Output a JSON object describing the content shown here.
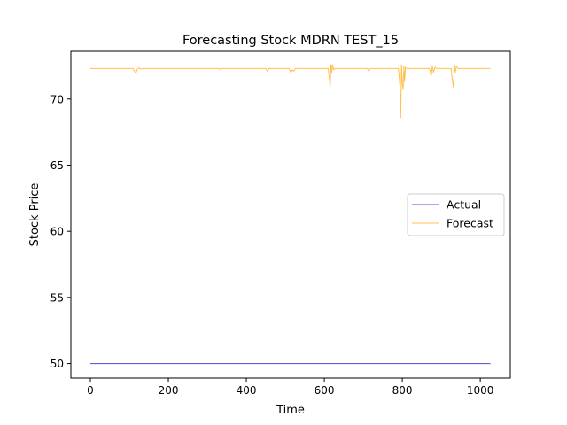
{
  "chart_data": {
    "type": "line",
    "title": "Forecasting Stock MDRN TEST_15",
    "xlabel": "Time",
    "ylabel": "Stock Price",
    "xlim": [
      -50,
      1077
    ],
    "ylim": [
      48.9,
      73.6
    ],
    "xticks": [
      0,
      200,
      400,
      600,
      800,
      1000
    ],
    "yticks": [
      50,
      55,
      60,
      65,
      70
    ],
    "legend_position": "center-right",
    "grid": false,
    "series": [
      {
        "name": "Actual",
        "color": "#0000cc",
        "points": [
          [
            0,
            50.0
          ],
          [
            1026,
            50.0
          ]
        ]
      },
      {
        "name": "Forecast",
        "color": "#ffa500",
        "points": [
          [
            0,
            72.3
          ],
          [
            110,
            72.3
          ],
          [
            113,
            72.1
          ],
          [
            117,
            71.95
          ],
          [
            121,
            72.3
          ],
          [
            125,
            72.35
          ],
          [
            130,
            72.25
          ],
          [
            135,
            72.3
          ],
          [
            330,
            72.3
          ],
          [
            334,
            72.2
          ],
          [
            338,
            72.3
          ],
          [
            450,
            72.3
          ],
          [
            454,
            72.1
          ],
          [
            458,
            72.3
          ],
          [
            510,
            72.3
          ],
          [
            514,
            72.0
          ],
          [
            518,
            72.2
          ],
          [
            522,
            72.1
          ],
          [
            526,
            72.3
          ],
          [
            610,
            72.3
          ],
          [
            613,
            71.5
          ],
          [
            615,
            70.9
          ],
          [
            617,
            72.6
          ],
          [
            619,
            72.0
          ],
          [
            621,
            72.6
          ],
          [
            624,
            72.2
          ],
          [
            628,
            72.3
          ],
          [
            710,
            72.3
          ],
          [
            714,
            72.1
          ],
          [
            718,
            72.3
          ],
          [
            790,
            72.3
          ],
          [
            794,
            71.0
          ],
          [
            796,
            68.6
          ],
          [
            798,
            72.6
          ],
          [
            800,
            71.2
          ],
          [
            802,
            70.7
          ],
          [
            804,
            72.5
          ],
          [
            806,
            71.3
          ],
          [
            808,
            72.4
          ],
          [
            812,
            72.3
          ],
          [
            870,
            72.3
          ],
          [
            874,
            71.7
          ],
          [
            877,
            72.5
          ],
          [
            880,
            72.0
          ],
          [
            884,
            72.4
          ],
          [
            888,
            72.3
          ],
          [
            925,
            72.3
          ],
          [
            928,
            71.5
          ],
          [
            931,
            70.9
          ],
          [
            934,
            72.6
          ],
          [
            936,
            72.0
          ],
          [
            939,
            72.5
          ],
          [
            943,
            72.3
          ],
          [
            1026,
            72.3
          ]
        ]
      }
    ]
  }
}
